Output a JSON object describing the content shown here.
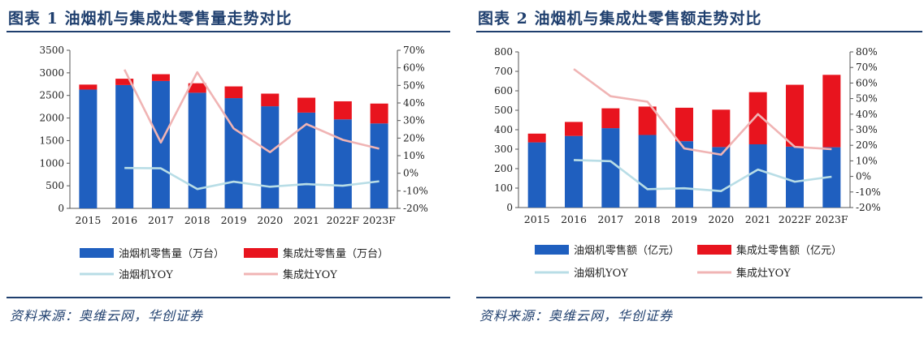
{
  "figures": [
    {
      "title": "图表 1   油烟机与集成灶零售量走势对比",
      "source": "资料来源：奥维云网，华创证券",
      "chart_data": {
        "type": "bar",
        "categories": [
          "2015",
          "2016",
          "2017",
          "2018",
          "2019",
          "2020",
          "2021",
          "2022F",
          "2023F"
        ],
        "stacked": true,
        "left_axis": {
          "ylim": [
            0,
            3500
          ],
          "ticks": [
            "0",
            "500",
            "1000",
            "1500",
            "2000",
            "2500",
            "3000",
            "3500"
          ]
        },
        "right_axis": {
          "ylim": [
            -20,
            70
          ],
          "ticks": [
            "-20%",
            "-10%",
            "0%",
            "10%",
            "20%",
            "30%",
            "40%",
            "50%",
            "60%",
            "70%"
          ]
        },
        "series": [
          {
            "name": "油烟机零售量（万台）",
            "kind": "bar",
            "axis": "left",
            "color": "#1f5fbf",
            "values": [
              2630,
              2730,
              2820,
              2560,
              2440,
              2260,
              2120,
              1970,
              1880
            ]
          },
          {
            "name": "集成灶零售量（万台）",
            "kind": "bar",
            "axis": "left",
            "color": "#e8141e",
            "values": [
              110,
              140,
              150,
              210,
              260,
              280,
              330,
              400,
              440
            ]
          },
          {
            "name": "油烟机YOY",
            "kind": "line",
            "axis": "right",
            "color": "#b8dde6",
            "values": [
              null,
              3.0,
              2.8,
              -9.0,
              -4.8,
              -7.7,
              -6.2,
              -7.1,
              -4.6
            ]
          },
          {
            "name": "集成灶YOY",
            "kind": "line",
            "axis": "right",
            "color": "#f0b4b4",
            "values": [
              null,
              59.0,
              17.5,
              57.5,
              25.5,
              12.0,
              28.0,
              19.0,
              14.0
            ]
          }
        ],
        "legend_position": "bottom"
      }
    },
    {
      "title": "图表 2   油烟机与集成灶零售额走势对比",
      "source": "资料来源：奥维云网，华创证券",
      "chart_data": {
        "type": "bar",
        "categories": [
          "2015",
          "2016",
          "2017",
          "2018",
          "2019",
          "2020",
          "2021",
          "2022F",
          "2023F"
        ],
        "stacked": true,
        "left_axis": {
          "ylim": [
            0,
            800
          ],
          "ticks": [
            "0",
            "100",
            "200",
            "300",
            "400",
            "500",
            "600",
            "700",
            "800"
          ]
        },
        "right_axis": {
          "ylim": [
            -20,
            80
          ],
          "ticks": [
            "-20%",
            "-10%",
            "0%",
            "10%",
            "20%",
            "30%",
            "40%",
            "50%",
            "60%",
            "70%",
            "80%"
          ]
        },
        "series": [
          {
            "name": "油烟机零售额（亿元）",
            "kind": "bar",
            "axis": "left",
            "color": "#1f5fbf",
            "values": [
              335,
              368,
              408,
              373,
              341,
              311,
              325,
              313,
              310
            ]
          },
          {
            "name": "集成灶零售额（亿元）",
            "kind": "bar",
            "axis": "left",
            "color": "#e8141e",
            "values": [
              45,
              72,
              102,
              146,
              172,
              192,
              268,
              318,
              372
            ]
          },
          {
            "name": "油烟机YOY",
            "kind": "line",
            "axis": "right",
            "color": "#b8dde6",
            "values": [
              null,
              10.5,
              9.8,
              -8.2,
              -7.6,
              -9.4,
              4.4,
              -3.4,
              -0.2
            ]
          },
          {
            "name": "集成灶YOY",
            "kind": "line",
            "axis": "right",
            "color": "#f0b4b4",
            "values": [
              null,
              69.0,
              51.5,
              48.0,
              18.0,
              14.0,
              40.0,
              19.0,
              17.5
            ]
          }
        ],
        "legend_position": "bottom"
      }
    }
  ]
}
